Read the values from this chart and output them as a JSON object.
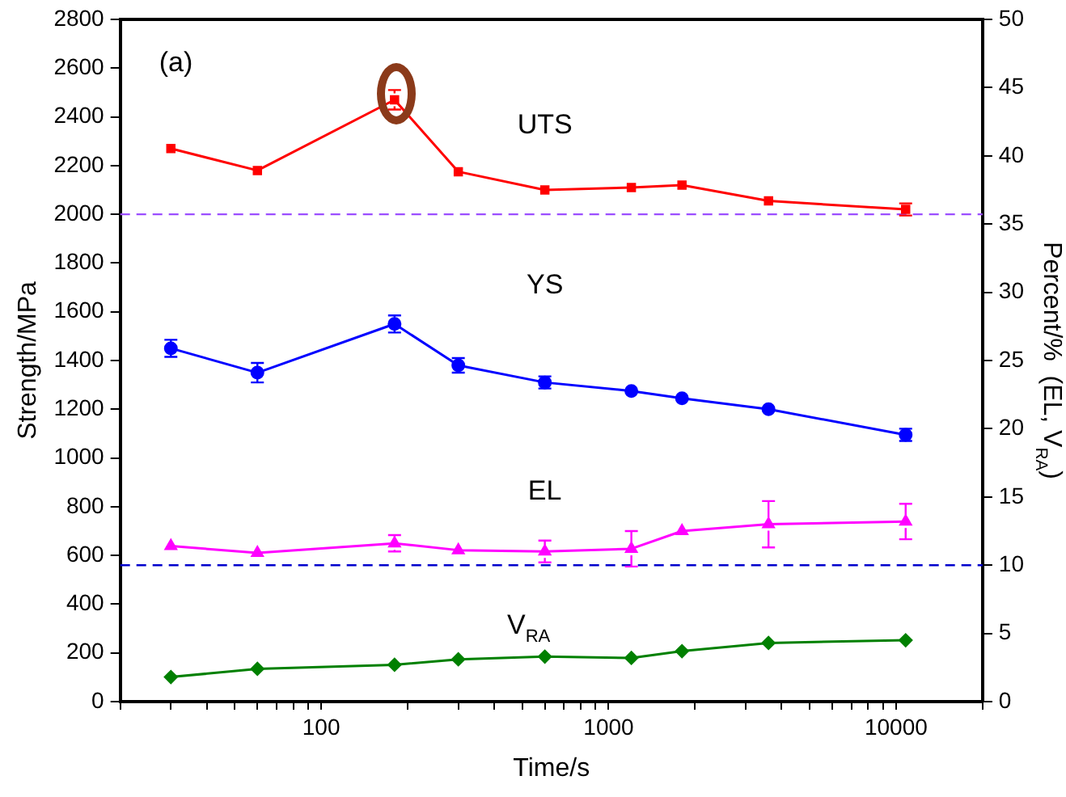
{
  "chart_data": {
    "type": "line",
    "xlabel": "Time/s",
    "ylabel": "Strength/MPa",
    "y2label": "Percent/%  (EL, V$_{RA}$)",
    "x": [
      30,
      60,
      180,
      300,
      600,
      1200,
      1800,
      3600,
      10800
    ],
    "log": "x",
    "xlim": [
      20,
      20000
    ],
    "xticks": [
      {
        "value": 20,
        "label": null
      },
      {
        "value": 30,
        "label": null
      },
      {
        "value": 40,
        "label": null
      },
      {
        "value": 50,
        "label": null
      },
      {
        "value": 60,
        "label": null
      },
      {
        "value": 70,
        "label": null
      },
      {
        "value": 80,
        "label": null
      },
      {
        "value": 90,
        "label": null
      },
      100,
      {
        "value": 200,
        "label": null
      },
      {
        "value": 300,
        "label": null
      },
      {
        "value": 400,
        "label": null
      },
      {
        "value": 500,
        "label": null
      },
      {
        "value": 600,
        "label": null
      },
      {
        "value": 700,
        "label": null
      },
      {
        "value": 800,
        "label": null
      },
      {
        "value": 900,
        "label": null
      },
      1000,
      {
        "value": 2000,
        "label": null
      },
      {
        "value": 3000,
        "label": null
      },
      {
        "value": 4000,
        "label": null
      },
      {
        "value": 5000,
        "label": null
      },
      {
        "value": 6000,
        "label": null
      },
      {
        "value": 7000,
        "label": null
      },
      {
        "value": 8000,
        "label": null
      },
      {
        "value": 9000,
        "label": null
      },
      10000,
      {
        "value": 20000,
        "label": null
      }
    ],
    "ylim": [
      0,
      2800
    ],
    "yticks": [
      0,
      200,
      400,
      600,
      800,
      1000,
      1200,
      1400,
      1600,
      1800,
      2000,
      2200,
      2400,
      2600,
      2800
    ],
    "y2lim": [
      0,
      50
    ],
    "y2ticks": [
      0,
      5,
      10,
      15,
      20,
      25,
      30,
      35,
      40,
      45,
      50
    ],
    "grid": false,
    "legend": false,
    "line_style": "solid",
    "series": [
      {
        "name": "UTS",
        "color": "#ff0000",
        "marker": "square",
        "values": [
          2270,
          2180,
          2470,
          2175,
          2100,
          2110,
          2120,
          2055,
          2020
        ],
        "errors": [
          null,
          null,
          40,
          null,
          null,
          null,
          null,
          null,
          25
        ]
      },
      {
        "name": "YS",
        "color": "#0000ff",
        "marker": "circle",
        "values": [
          1450,
          1350,
          1550,
          1380,
          1310,
          1275,
          1245,
          1200,
          1095
        ],
        "errors": [
          35,
          40,
          35,
          30,
          25,
          null,
          null,
          null,
          25
        ]
      },
      {
        "name": "EL",
        "color": "#ff00ff",
        "marker": "triangle",
        "axis": "y2",
        "values": [
          11.4,
          10.9,
          11.6,
          11.1,
          11.0,
          11.2,
          12.5,
          13.0,
          13.2
        ],
        "errors": [
          null,
          null,
          0.6,
          null,
          0.8,
          1.3,
          null,
          1.7,
          1.3
        ]
      },
      {
        "name": "V$_{RA}$",
        "color": "#008000",
        "marker": "diamond",
        "axis": "y2",
        "values": [
          1.8,
          2.4,
          2.7,
          3.1,
          3.3,
          3.2,
          3.7,
          4.3,
          4.5
        ]
      }
    ],
    "ref_lines": [
      {
        "axis": "y",
        "value": 2000,
        "color": "#9b4dff",
        "line_style": "dashed"
      },
      {
        "axis": "y2",
        "value": 10,
        "color": "#0000cc",
        "line_style": "dashed"
      }
    ],
    "annotations": [
      "(a)"
    ]
  }
}
